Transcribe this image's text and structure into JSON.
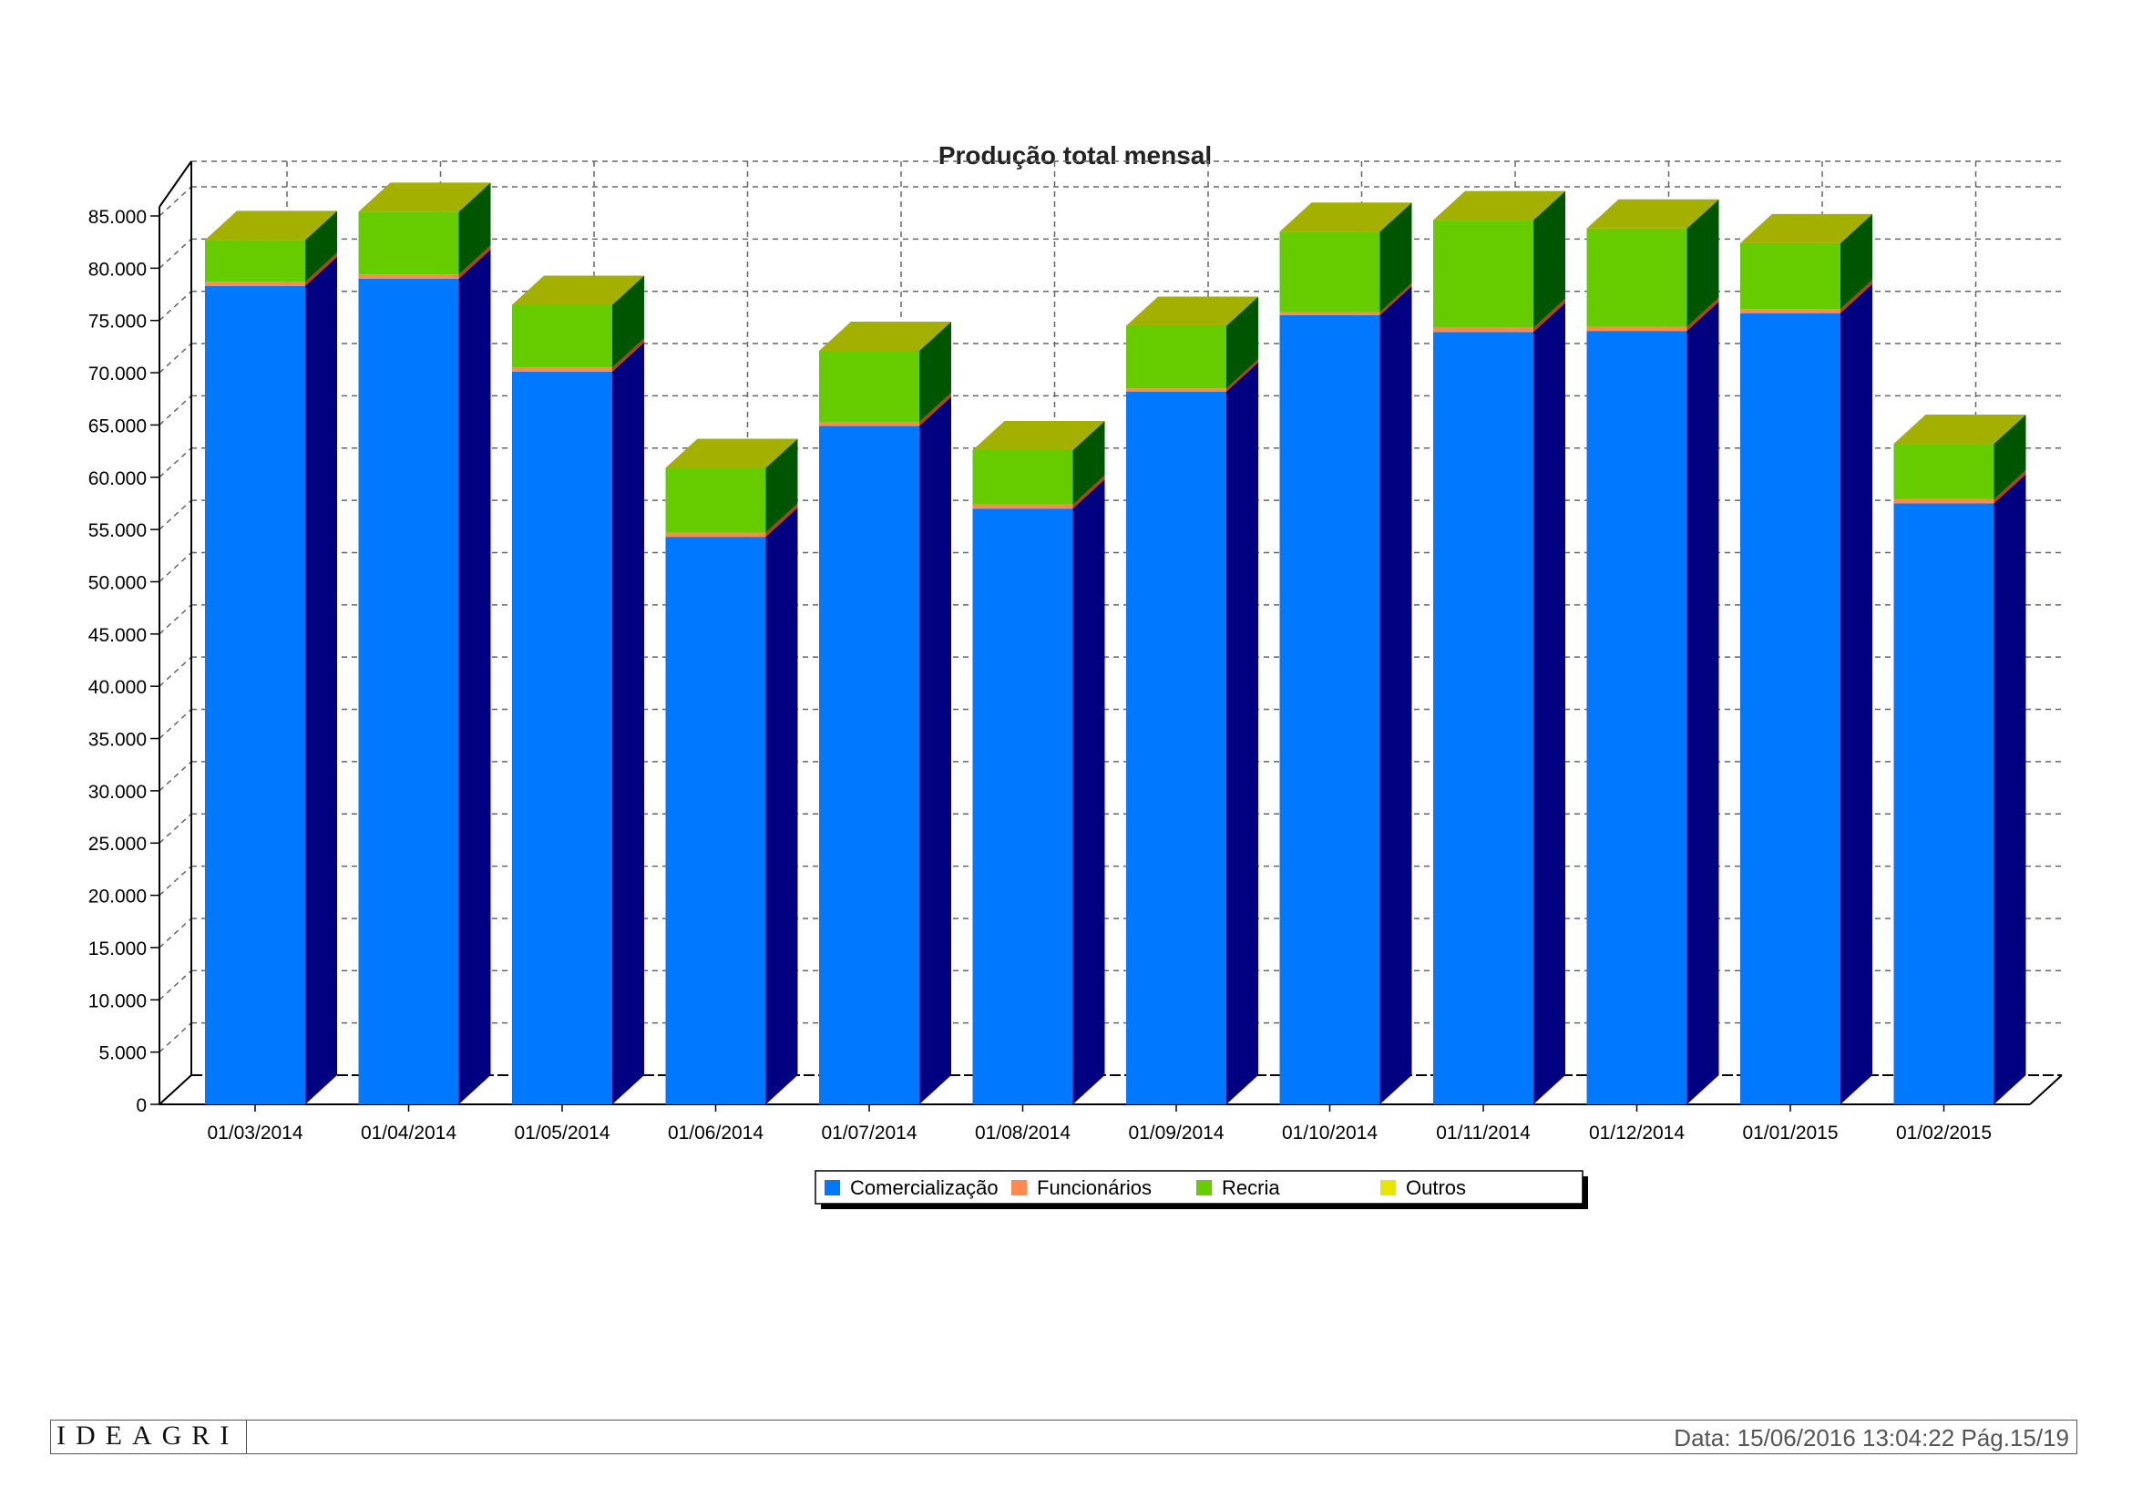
{
  "chart_data": {
    "type": "bar",
    "stacked": true,
    "three_d": true,
    "title": "Produção total mensal",
    "xlabel": "",
    "ylabel": "",
    "ylim": [
      0,
      85000
    ],
    "y_ticks": [
      "0",
      "5.000",
      "10.000",
      "15.000",
      "20.000",
      "25.000",
      "30.000",
      "35.000",
      "40.000",
      "45.000",
      "50.000",
      "55.000",
      "60.000",
      "65.000",
      "70.000",
      "75.000",
      "80.000",
      "85.000"
    ],
    "grid": true,
    "legend_position": "bottom-center",
    "categories": [
      "01/03/2014",
      "01/04/2014",
      "01/05/2014",
      "01/06/2014",
      "01/07/2014",
      "01/08/2014",
      "01/09/2014",
      "01/10/2014",
      "01/11/2014",
      "01/12/2014",
      "01/01/2015",
      "01/02/2015"
    ],
    "series": [
      {
        "name": "Comercialização",
        "color": "#0078ff",
        "side_color": "#000080",
        "values": [
          78300,
          79000,
          70100,
          54300,
          64900,
          57000,
          68200,
          75500,
          73900,
          74000,
          75700,
          57500
        ]
      },
      {
        "name": "Funcionários",
        "color": "#ff8a50",
        "side_color": "#b04020",
        "values": [
          400,
          400,
          400,
          400,
          400,
          400,
          300,
          300,
          400,
          400,
          400,
          400
        ]
      },
      {
        "name": "Recria",
        "color": "#66cc00",
        "side_color": "#005500",
        "values": [
          4000,
          6000,
          6000,
          6200,
          6800,
          5200,
          6000,
          7700,
          10300,
          9400,
          6300,
          5300
        ]
      },
      {
        "name": "Outros",
        "color": "#e6e600",
        "side_color": "#8a8a00",
        "values": [
          0,
          0,
          0,
          0,
          0,
          0,
          0,
          0,
          0,
          0,
          0,
          0
        ]
      }
    ],
    "top_color": "#a3b000"
  },
  "footer": {
    "logo": "IDEAGRI",
    "text": "Data: 15/06/2016 13:04:22 Pág.15/19"
  }
}
